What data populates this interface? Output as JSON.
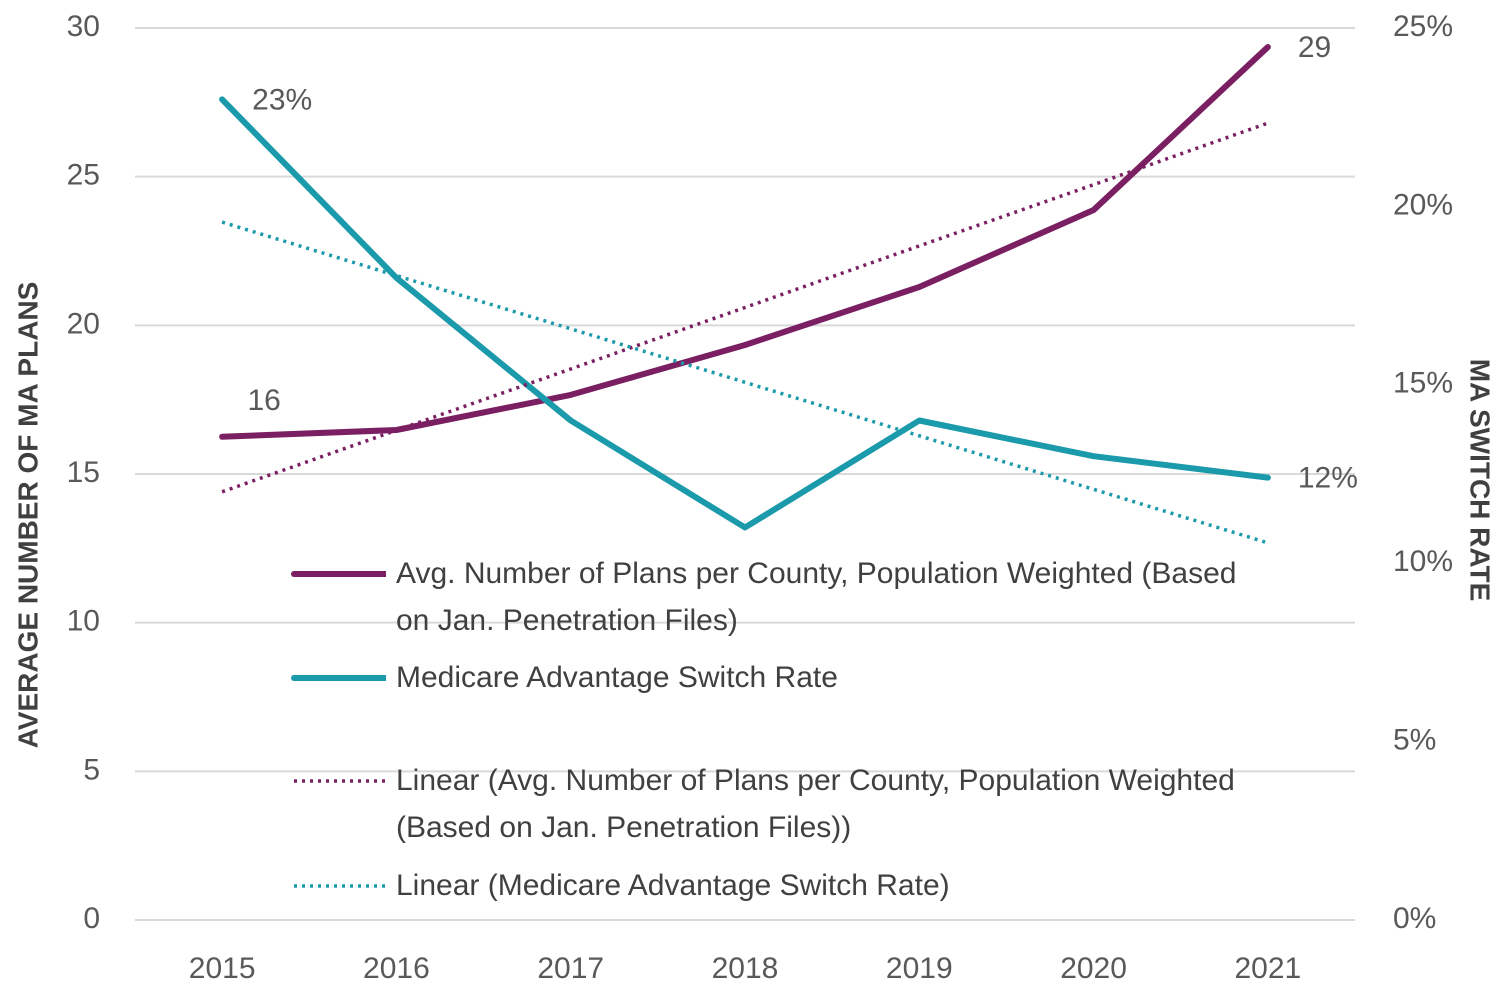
{
  "chart_data": {
    "type": "line",
    "categories": [
      "2015",
      "2016",
      "2017",
      "2018",
      "2019",
      "2020",
      "2021"
    ],
    "series": [
      {
        "name": "Avg. Number of Plans per County, Population Weighted (Based on Jan. Penetration Files)",
        "color": "#7b1f63",
        "style": "solid",
        "axis": "y",
        "values": [
          16.25,
          16.48,
          17.66,
          19.34,
          21.29,
          23.88,
          29.36
        ],
        "value_labels": [
          "16",
          null,
          null,
          null,
          null,
          null,
          "29"
        ]
      },
      {
        "name": "Medicare Advantage Switch Rate",
        "color": "#1a9aaa",
        "style": "solid",
        "axis": "y2",
        "values": [
          23.0,
          18.0,
          14.0,
          11.0,
          14.0,
          13.0,
          12.4
        ],
        "value_labels": [
          "23%",
          null,
          null,
          null,
          null,
          null,
          "12%"
        ]
      },
      {
        "name": "Linear (Avg. Number of Plans per County, Population Weighted (Based on Jan. Penetration Files))",
        "color": "#7b1f63",
        "style": "dotted",
        "axis": "y",
        "values": [
          14.4,
          16.47,
          18.53,
          20.6,
          22.67,
          24.73,
          26.8
        ]
      },
      {
        "name": "Linear (Medicare Advantage Switch Rate)",
        "color": "#1a9aaa",
        "style": "dotted",
        "axis": "y2",
        "values": [
          19.56,
          18.06,
          16.57,
          15.07,
          13.57,
          12.07,
          10.57
        ]
      }
    ],
    "y_label": "AVERAGE NUMBER OF MA PLANS",
    "y2_label": "MA SWITCH RATE",
    "ylim": [
      0,
      30
    ],
    "yticks": [
      0,
      5,
      10,
      15,
      20,
      25,
      30
    ],
    "y2lim": [
      0,
      25
    ],
    "y2ticks": [
      {
        "value": 0,
        "label": "0%"
      },
      {
        "value": 5,
        "label": "5%"
      },
      {
        "value": 10,
        "label": "10%"
      },
      {
        "value": 15,
        "label": "15%"
      },
      {
        "value": 20,
        "label": "20%"
      },
      {
        "value": 25,
        "label": "25%"
      }
    ],
    "grid": true,
    "legend": "inside"
  }
}
